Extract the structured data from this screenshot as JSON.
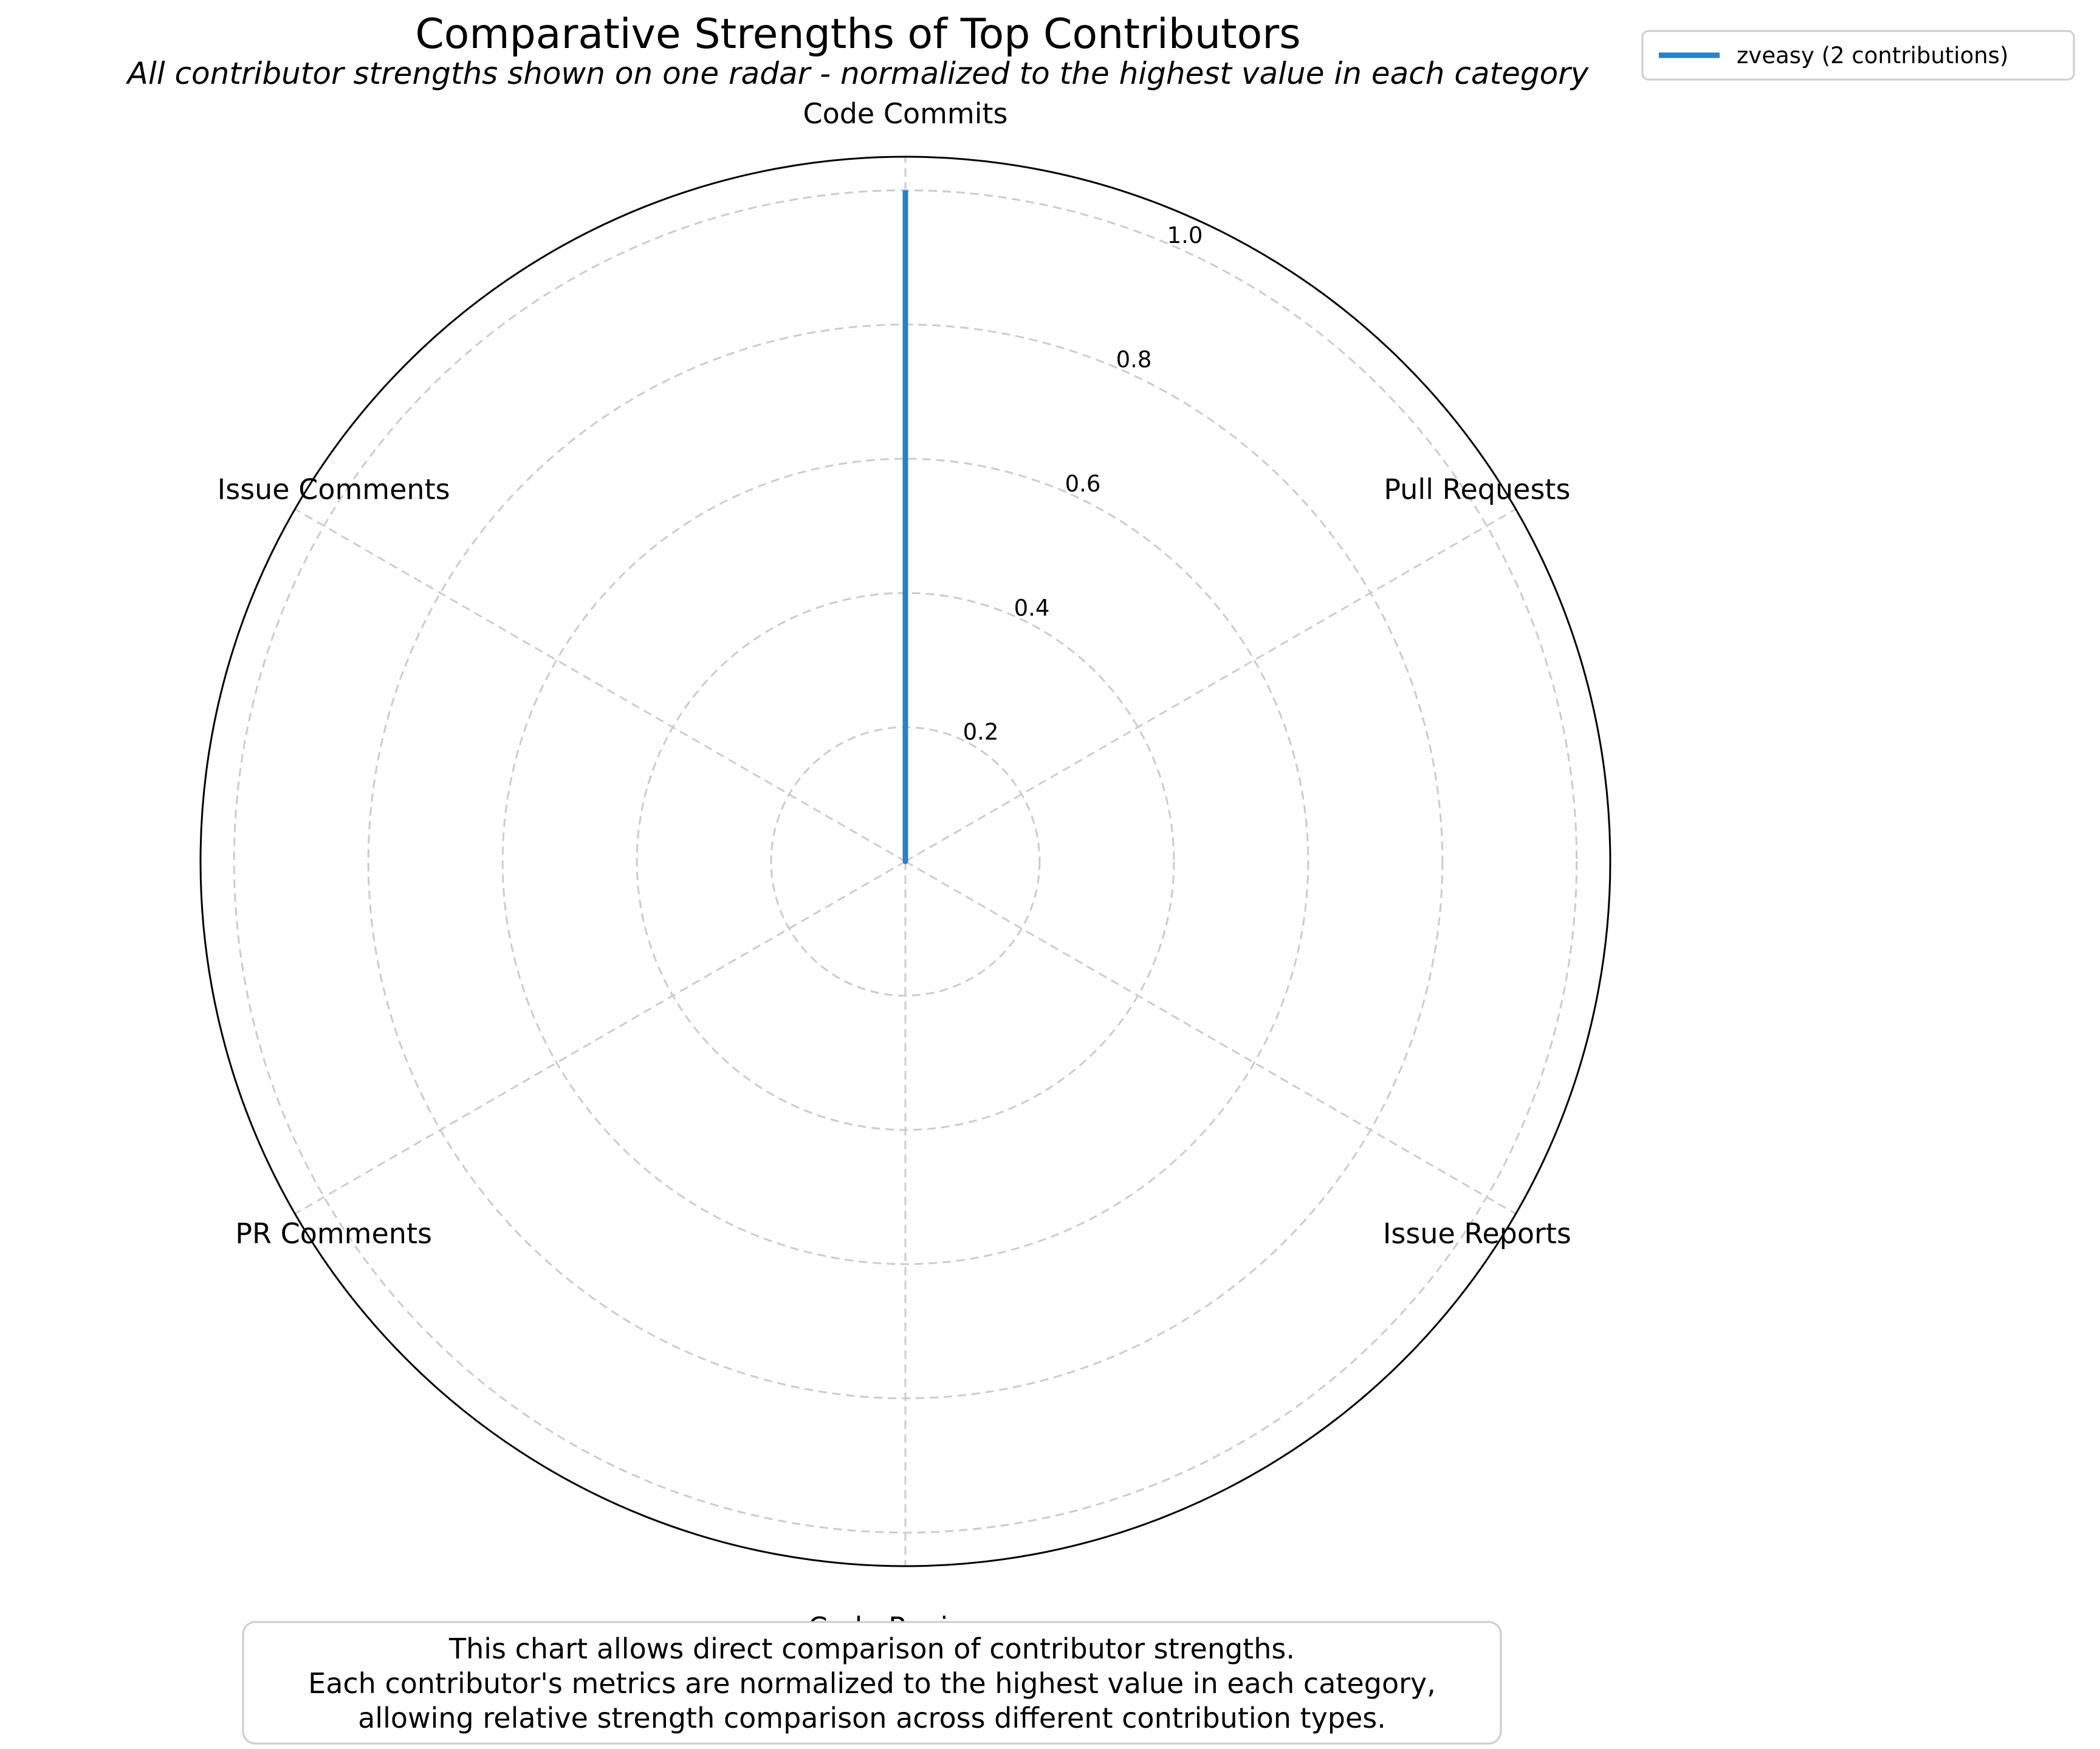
{
  "chart_data": {
    "type": "radar",
    "title": "Comparative Strengths of Top Contributors",
    "subtitle": "All contributor strengths shown on one radar - normalized to the highest value in each category",
    "categories": [
      "Code Commits",
      "Pull Requests",
      "Issue Reports",
      "Code Reviews",
      "PR Comments",
      "Issue Comments"
    ],
    "radial_ticks": [
      "0.2",
      "0.4",
      "0.6",
      "0.8",
      "1.0"
    ],
    "radial_tick_values": [
      0.2,
      0.4,
      0.6,
      0.8,
      1.0
    ],
    "rlim": [
      0,
      1.05
    ],
    "grid": true,
    "legend_position": "top-right",
    "series": [
      {
        "name": "zveasy (2 contributions)",
        "values": [
          1.0,
          0,
          0,
          0,
          0,
          0
        ],
        "color": "#2f7fbf"
      }
    ],
    "note": [
      "This chart allows direct comparison of contributor strengths.",
      "Each contributor's metrics are normalized to the highest value in each category,",
      "allowing relative strength comparison across different contribution types."
    ]
  }
}
